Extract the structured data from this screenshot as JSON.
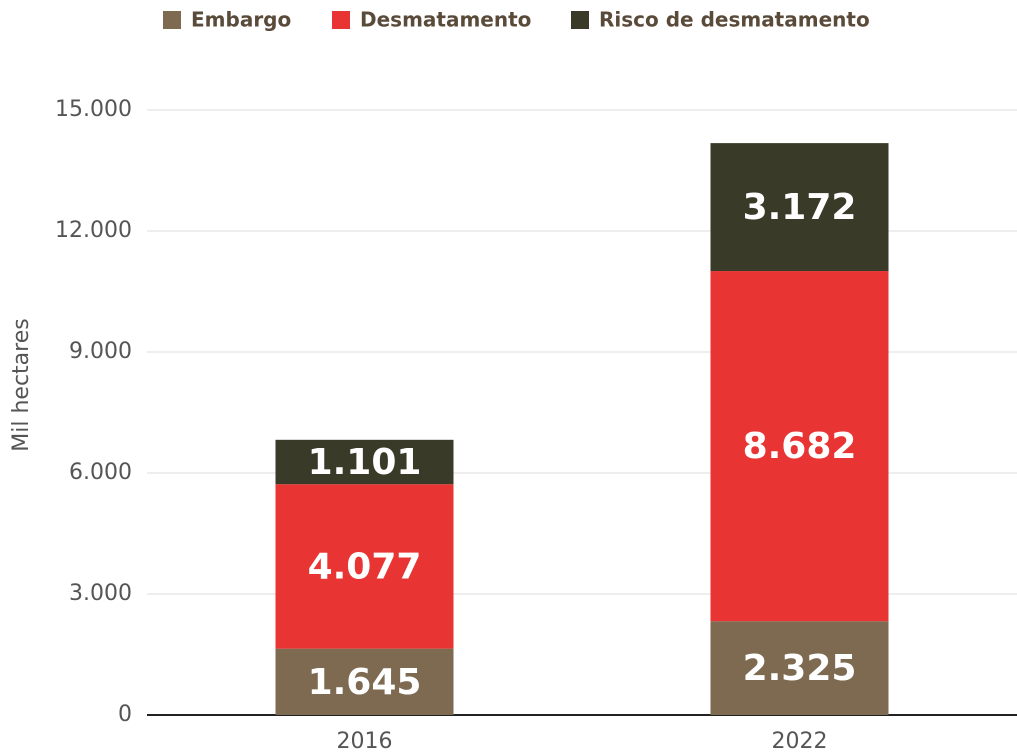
{
  "chart_data": {
    "type": "stacked-bar",
    "categories": [
      "2016",
      "2022"
    ],
    "series": [
      {
        "name": "Embargo",
        "color": "#7d6a50",
        "values": [
          1645,
          2325
        ],
        "value_labels": [
          "1.645",
          "2.325"
        ]
      },
      {
        "name": "Desmatamento",
        "color": "#e83433",
        "values": [
          4077,
          8682
        ],
        "value_labels": [
          "4.077",
          "8.682"
        ]
      },
      {
        "name": "Risco de desmatamento",
        "color": "#3a3a28",
        "values": [
          1101,
          3172
        ],
        "value_labels": [
          "1.101",
          "3.172"
        ]
      }
    ],
    "y_label": "Mil hectares",
    "ylim": [
      0,
      15000
    ],
    "yticks": [
      0,
      {
        "value": 3000,
        "label": "3.000"
      },
      {
        "value": 6000,
        "label": "6.000"
      },
      {
        "value": 9000,
        "label": "9.000"
      },
      {
        "value": 12000,
        "label": "12.000"
      },
      {
        "value": 15000,
        "label": "15.000"
      }
    ],
    "grid": true,
    "legend": "top"
  }
}
